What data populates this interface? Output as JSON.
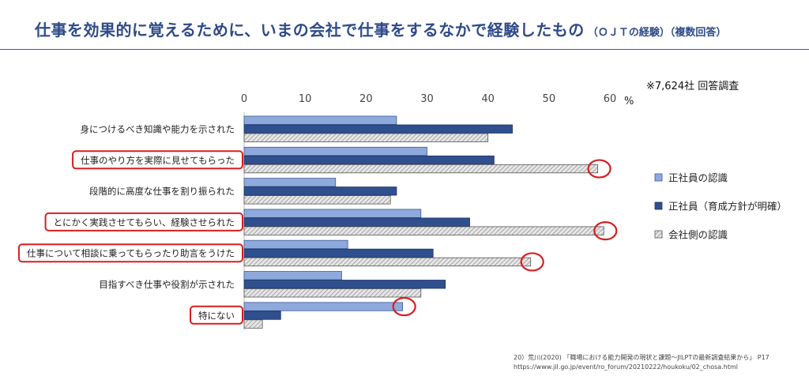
{
  "title": {
    "main": "仕事を効果的に覚えるために、いまの会社で仕事をするなかで経験したもの",
    "sub": "（ＯＪＴの経験）（複数回答）"
  },
  "note": "※7,624社 回答調査",
  "source": {
    "line1": "20）荒川(2020) 「職場における能力開発の現状と課題～JILPTの最新調査結果から」 P17",
    "line2": "https://www.jil.go.jp/event/ro_forum/20210222/houkoku/02_chosa.html"
  },
  "colors": {
    "series1": "#8ea9db",
    "series2": "#2f4f8f",
    "series3": "#e6e6e6",
    "highlight": "#d81e1e"
  },
  "chart_data": {
    "type": "bar",
    "orientation": "horizontal",
    "unit": "%",
    "xlim": [
      0,
      60
    ],
    "ticks": [
      0,
      10,
      20,
      30,
      40,
      50,
      60
    ],
    "tick_labels": [
      "0",
      "10",
      "20",
      "30",
      "40",
      "50",
      "60"
    ],
    "legend_position": "right",
    "grid": false,
    "categories": [
      "身につけるべき知識や能力を示された",
      "仕事のやり方を実際に見せてもらった",
      "段階的に高度な仕事を割り振られた",
      "とにかく実践させてもらい、経験させられた",
      "仕事について相談に乗ってもらったり助言をうけた",
      "目指すべき仕事や役割が示された",
      "特にない"
    ],
    "series": [
      {
        "name": "正社員の認識",
        "values": [
          25,
          30,
          15,
          29,
          17,
          16,
          26
        ]
      },
      {
        "name": "正社員（育成方針が明確）",
        "values": [
          44,
          41,
          25,
          37,
          31,
          33,
          6
        ]
      },
      {
        "name": "会社側の認識",
        "values": [
          40,
          58,
          24,
          59,
          47,
          29,
          3
        ]
      }
    ],
    "highlighted_categories": [
      1,
      3,
      4,
      6
    ],
    "circled_bars": [
      {
        "category": 1,
        "series": 2
      },
      {
        "category": 3,
        "series": 2
      },
      {
        "category": 4,
        "series": 2
      },
      {
        "category": 6,
        "series": 0
      }
    ]
  }
}
